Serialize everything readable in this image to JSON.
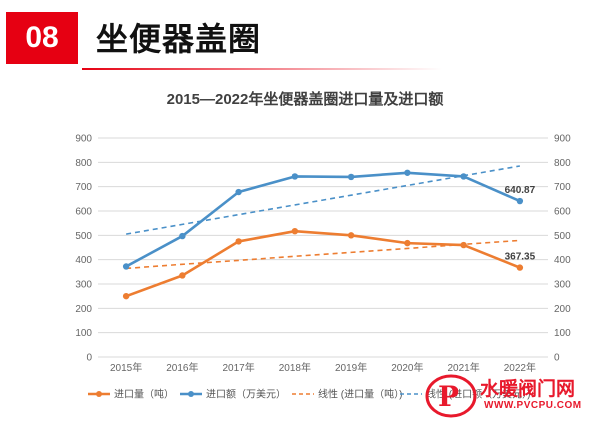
{
  "header": {
    "badge": "08",
    "title": "坐便器盖圈"
  },
  "chart_data": {
    "type": "line",
    "title": "2015—2022年坐便器盖圈进口量及进口额",
    "categories": [
      "2015年",
      "2016年",
      "2017年",
      "2018年",
      "2019年",
      "2020年",
      "2021年",
      "2022年"
    ],
    "ylim": [
      0,
      900
    ],
    "y_ticks": [
      "0",
      "100",
      "200",
      "300",
      "400",
      "500",
      "600",
      "700",
      "800",
      "900"
    ],
    "grid": true,
    "legend_position": "bottom",
    "series": [
      {
        "name": "进口量（吨）",
        "values": [
          250,
          335,
          475,
          517,
          500,
          468,
          460,
          367.35
        ],
        "color": "#ED7D31",
        "style": "solid"
      },
      {
        "name": "进口额（万美元）",
        "values": [
          372,
          497,
          678,
          742,
          740,
          757,
          742,
          640.87
        ],
        "color": "#4A90C8",
        "style": "solid"
      },
      {
        "name": "线性 (进口量（吨）)",
        "values": [
          364,
          381,
          397,
          414,
          430,
          446,
          463,
          479
        ],
        "color": "#ED7D31",
        "style": "dashed"
      },
      {
        "name": "线性 (进口额（万美元）)",
        "values": [
          505,
          545,
          585,
          625,
          665,
          705,
          745,
          785
        ],
        "color": "#4A90C8",
        "style": "dashed"
      }
    ],
    "annotations": [
      {
        "text": "640.87",
        "series": 1,
        "index": 7
      },
      {
        "text": "367.35",
        "series": 0,
        "index": 7
      }
    ]
  },
  "watermark": {
    "cn": "水暖阀门网",
    "url": "WWW.PVCPU.COM"
  }
}
